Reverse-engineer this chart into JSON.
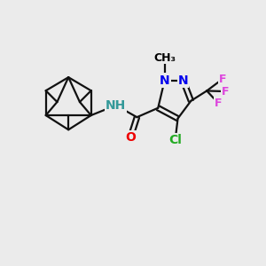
{
  "background_color": "#ebebeb",
  "atom_colors": {
    "N": "#0000ee",
    "O": "#ee0000",
    "Cl": "#22aa22",
    "F": "#dd44dd",
    "C": "#000000",
    "H": "#339999"
  },
  "bond_color": "#111111",
  "bond_width": 1.6,
  "font_size_atom": 10,
  "font_size_small": 9,
  "fig_width": 3.0,
  "fig_height": 3.0,
  "dpi": 100,
  "xlim": [
    0,
    10
  ],
  "ylim": [
    0,
    10
  ]
}
